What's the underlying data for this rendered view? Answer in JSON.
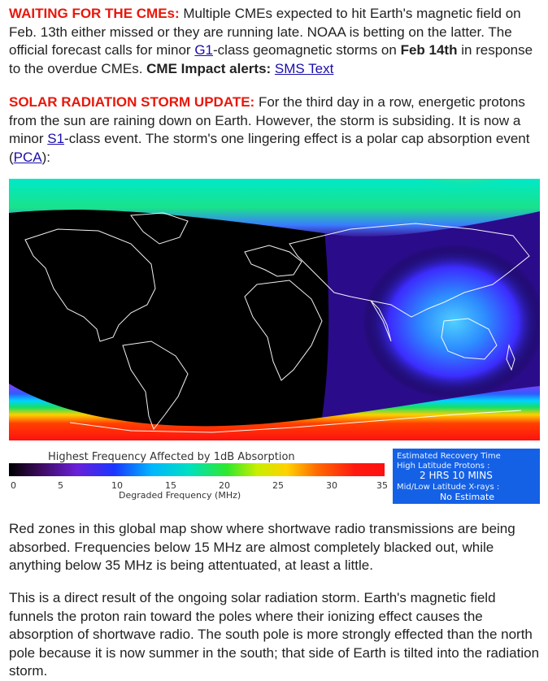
{
  "p1": {
    "headline": "WAITING FOR THE CMEs:",
    "t1": " Multiple CMEs expected to hit Earth's magnetic field on Feb. 13th either missed or they are running late. NOAA is betting on the latter. The official forecast calls for minor ",
    "link_g1": "G1",
    "t2": "-class geomagnetic storms on ",
    "date_bold": "Feb 14th",
    "t3": " in response to the overdue CMEs. ",
    "alert_bold": "CME Impact alerts:",
    "t4": " ",
    "link_sms": "SMS Text"
  },
  "p2": {
    "headline": "SOLAR RADIATION STORM UPDATE:",
    "t1": " For the third day in a row, energetic protons from the sun are raining down on Earth. However, the storm is subsiding. It is now a minor ",
    "link_s1": "S1",
    "t2": "-class event. The storm's one lingering effect is a polar cap absorption event (",
    "link_pca": "PCA",
    "t3": "):"
  },
  "map": {
    "scale_title": "Highest Frequency Affected by 1dB Absorption",
    "scale_ticks": [
      "0",
      "5",
      "10",
      "15",
      "20",
      "25",
      "30",
      "35"
    ],
    "scale_axis_label": "Degraded Frequency (MHz)",
    "recovery": {
      "title": "Estimated Recovery Time",
      "high_lat_label": "High Latitude Protons :",
      "high_lat_value": "2 HRS 10 MINS",
      "low_lat_label": "Mid/Low Latitude X-rays :",
      "low_lat_value": "No Estimate"
    }
  },
  "p3": "Red zones in this global map show where shortwave radio transmissions are being absorbed. Frequencies below 15 MHz are almost completely blacked out, while anything below 35 MHz is being attentuated, at least a little.",
  "p4": "This is a direct result of the ongoing solar radiation storm. Earth's magnetic field funnels the proton rain toward the poles where their ionizing effect causes the absorption of shortwave radio. The south pole is more strongly effected than the north pole because it is now summer in the south; that side of Earth is tilted into the radiation storm."
}
